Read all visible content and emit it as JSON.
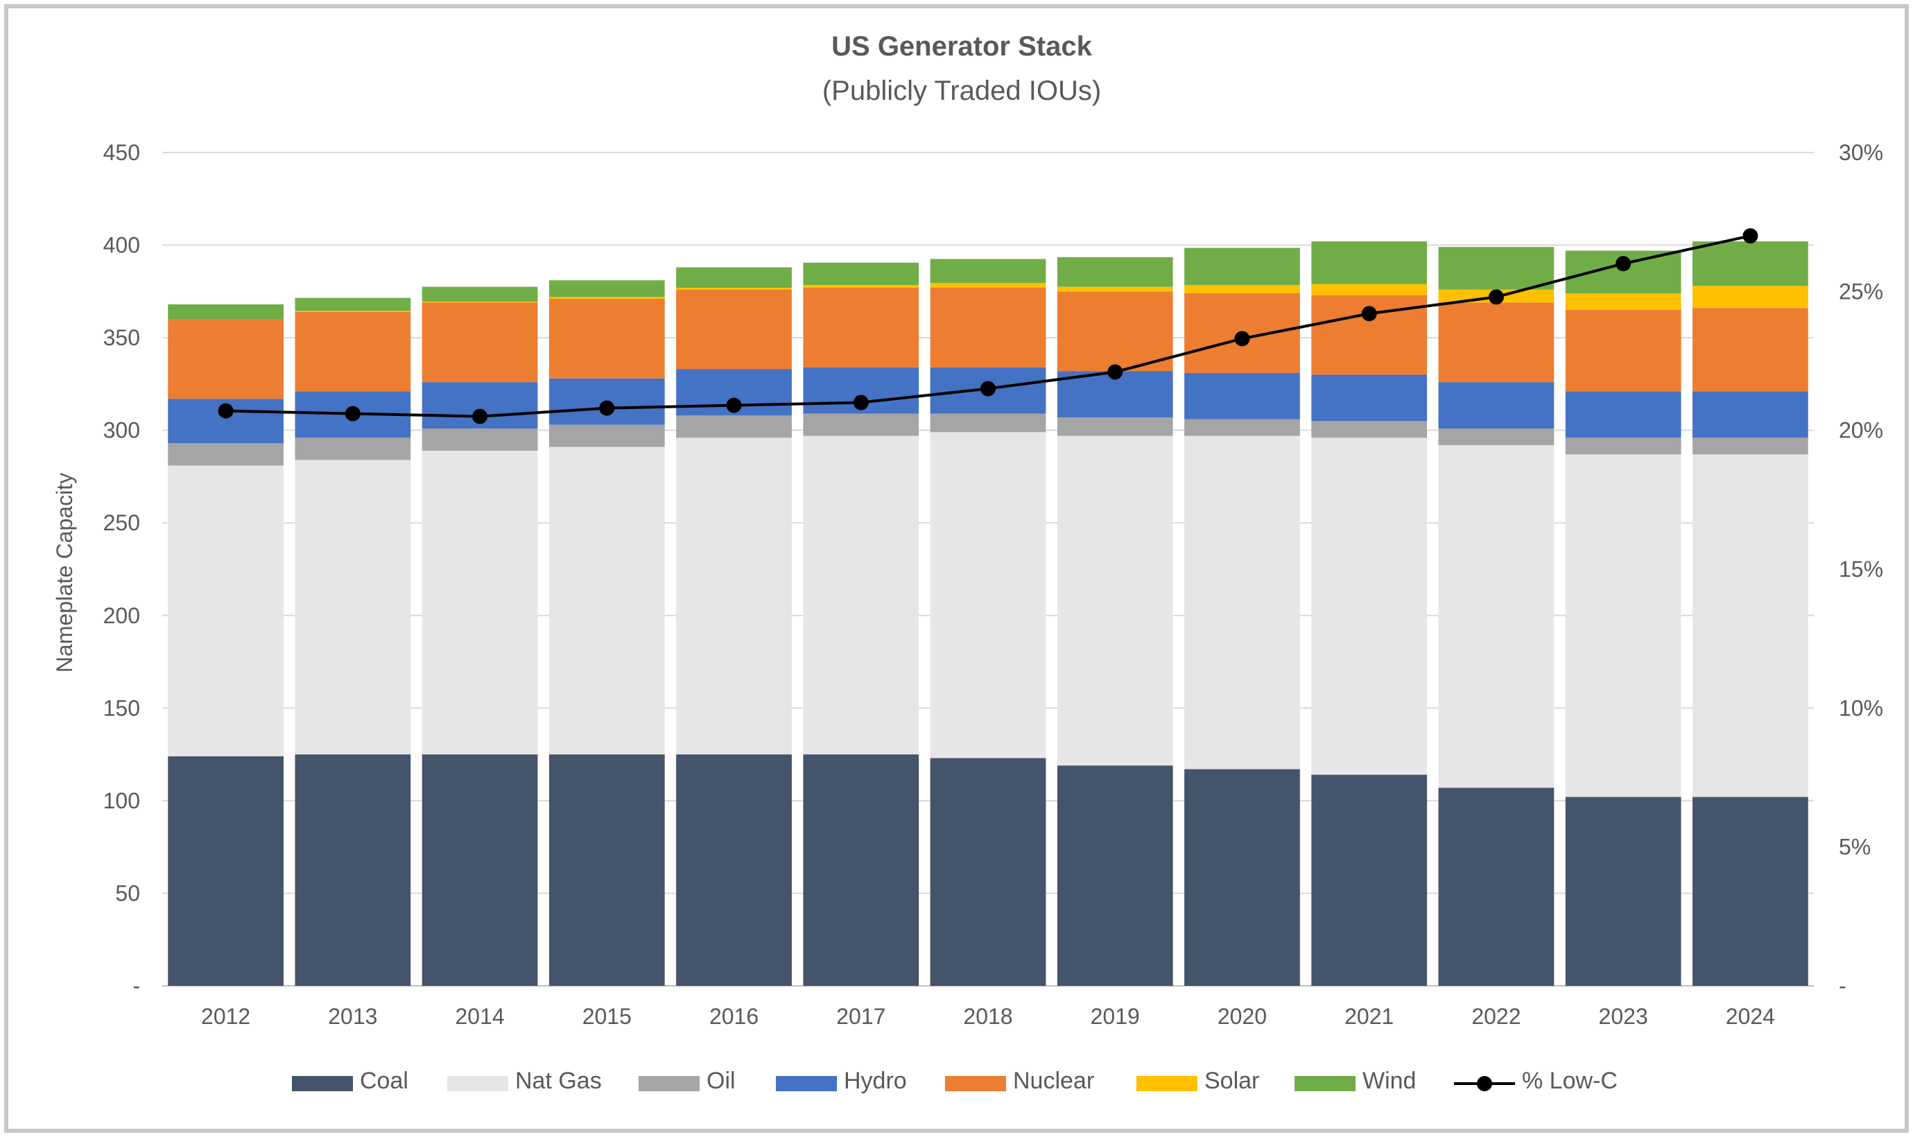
{
  "chart_data": {
    "type": "bar",
    "stacked": true,
    "title": "US Generator Stack",
    "subtitle": "(Publicly Traded IOUs)",
    "ylabel": "Nameplate Capacity",
    "ylim": [
      0,
      450
    ],
    "y_ticks": [
      "-",
      "50",
      "100",
      "150",
      "200",
      "250",
      "300",
      "350",
      "400",
      "450"
    ],
    "y_tick_values": [
      0,
      50,
      100,
      150,
      200,
      250,
      300,
      350,
      400,
      450
    ],
    "y2lim": [
      0,
      30
    ],
    "y2_ticks": [
      "-",
      "5%",
      "10%",
      "15%",
      "20%",
      "25%",
      "30%"
    ],
    "y2_tick_values": [
      0,
      5,
      10,
      15,
      20,
      25,
      30
    ],
    "grid": true,
    "legend_position": "bottom",
    "categories": [
      "2012",
      "2013",
      "2014",
      "2015",
      "2016",
      "2017",
      "2018",
      "2019",
      "2020",
      "2021",
      "2022",
      "2023",
      "2024"
    ],
    "series": [
      {
        "name": "Coal",
        "color": "#44546a",
        "values": [
          124,
          125,
          125,
          125,
          125,
          125,
          123,
          119,
          117,
          114,
          107,
          102,
          102
        ]
      },
      {
        "name": "Nat Gas",
        "color": "#e7e6e6",
        "values": [
          157,
          159,
          164,
          166,
          171,
          172,
          176,
          178,
          180,
          182,
          185,
          185,
          185
        ]
      },
      {
        "name": "Oil",
        "color": "#a5a5a5",
        "values": [
          12,
          12,
          12,
          12,
          12,
          12,
          10,
          10,
          9,
          9,
          9,
          9,
          9
        ]
      },
      {
        "name": "Hydro",
        "color": "#4472c4",
        "values": [
          24,
          25,
          25,
          25,
          25,
          25,
          25,
          25,
          25,
          25,
          25,
          25,
          25
        ]
      },
      {
        "name": "Nuclear",
        "color": "#ed7d31",
        "values": [
          43,
          43,
          43,
          43,
          43,
          43,
          43,
          43,
          43,
          43,
          43,
          44,
          45
        ]
      },
      {
        "name": "Solar",
        "color": "#ffc000",
        "values": [
          0,
          0.5,
          0.5,
          1,
          1,
          1.5,
          2.5,
          2.5,
          4.5,
          6,
          7,
          9,
          12
        ]
      },
      {
        "name": "Wind",
        "color": "#70ad47",
        "values": [
          8,
          7,
          8,
          9,
          11,
          12,
          13,
          16,
          20,
          23,
          23,
          23,
          24
        ]
      }
    ],
    "line_series": {
      "name": "% Low-C",
      "axis": "secondary",
      "color": "#000000",
      "values": [
        20.7,
        20.6,
        20.5,
        20.8,
        20.9,
        21.0,
        21.5,
        22.1,
        23.3,
        24.2,
        24.8,
        26.0,
        27.0
      ]
    }
  }
}
